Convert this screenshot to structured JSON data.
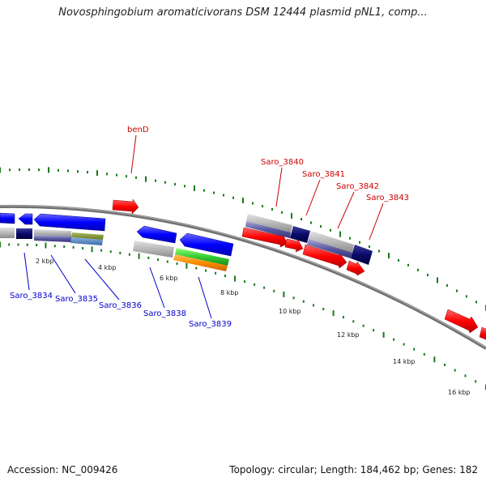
{
  "title": "Novosphingobium aromaticivorans DSM 12444 plasmid pNL1, comp...",
  "footer": {
    "accession": "Accession: NC_009426",
    "summary": "Topology: circular; Length: 184,462 bp; Genes: 182"
  },
  "scale_labels": [
    "2 kbp",
    "4 kbp",
    "6 kbp",
    "8 kbp",
    "10 kbp",
    "12 kbp",
    "14 kbp",
    "16 kbp"
  ],
  "gene_labels_forward": [
    "benD",
    "Saro_3840",
    "Saro_3841",
    "Saro_3842",
    "Saro_3843"
  ],
  "gene_labels_reverse": [
    "Saro_3834",
    "Saro_3835",
    "Saro_3836",
    "Saro_3838",
    "Saro_3839"
  ],
  "colors": {
    "forward_strand": "#ff0000",
    "reverse_strand": "#0000ff",
    "forward_label": "#cc0000",
    "reverse_label": "#0000cc",
    "backbone": "#808080",
    "tick": "#1a7a1a"
  }
}
